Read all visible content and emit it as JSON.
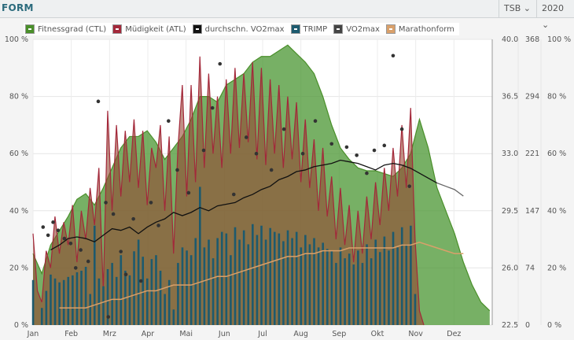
{
  "header": {
    "title": "FORM",
    "metric_select": "TSB",
    "year_select": "2020"
  },
  "legend": [
    {
      "label": "Fitnessgrad (CTL)",
      "color": "#4a8f2a"
    },
    {
      "label": "Müdigkeit (ATL)",
      "color": "#a3283a"
    },
    {
      "label": "durchschn. VO2max",
      "color": "#111111"
    },
    {
      "label": "TRIMP",
      "color": "#1d5a6e"
    },
    {
      "label": "VO2max",
      "color": "#444444"
    },
    {
      "label": "Marathonform",
      "color": "#d9a06a"
    }
  ],
  "chart_data": {
    "type": "area",
    "months": [
      "Jan",
      "Feb",
      "Mrz",
      "Apr",
      "Mai",
      "Jun",
      "Jul",
      "Aug",
      "Sep",
      "Okt",
      "Nov",
      "Dez"
    ],
    "axes": {
      "left_percent": {
        "ticks": [
          "0 %",
          "20 %",
          "40 %",
          "60 %",
          "80 %",
          "100 %"
        ],
        "range": [
          0,
          100
        ]
      },
      "vo2max": {
        "ticks": [
          "22.5",
          "26.0",
          "29.5",
          "33.0",
          "36.5",
          "40.0"
        ],
        "range": [
          22.5,
          40
        ]
      },
      "trimp": {
        "ticks": [
          "0",
          "74",
          "147",
          "221",
          "294",
          "368"
        ],
        "range": [
          0,
          368
        ]
      },
      "right_percent": {
        "ticks": [
          "0 %",
          "20 %",
          "40 %",
          "60 %",
          "80 %",
          "100 %"
        ],
        "range": [
          0,
          100
        ]
      }
    },
    "ctl_percent_weekly": [
      25,
      18,
      28,
      33,
      38,
      44,
      46,
      42,
      48,
      55,
      62,
      66,
      66,
      68,
      64,
      58,
      62,
      66,
      72,
      80,
      80,
      78,
      84,
      86,
      88,
      92,
      94,
      94,
      96,
      98,
      95,
      92,
      88,
      80,
      70,
      62,
      58,
      55,
      54,
      54,
      53,
      52,
      55,
      60,
      72,
      62,
      48,
      40,
      32,
      22,
      14,
      8,
      5
    ],
    "atl_percent_halfweekly": [
      32,
      12,
      8,
      26,
      20,
      38,
      25,
      36,
      28,
      42,
      22,
      40,
      30,
      48,
      35,
      55,
      12,
      75,
      40,
      70,
      45,
      68,
      50,
      72,
      48,
      68,
      42,
      62,
      55,
      70,
      40,
      66,
      25,
      62,
      84,
      45,
      84,
      50,
      94,
      55,
      88,
      60,
      80,
      55,
      86,
      60,
      90,
      62,
      88,
      64,
      92,
      58,
      90,
      56,
      86,
      60,
      84,
      55,
      80,
      58,
      78,
      50,
      72,
      48,
      65,
      40,
      62,
      38,
      52,
      30,
      48,
      28,
      42,
      22,
      40,
      25,
      45,
      30,
      50,
      35,
      55,
      40,
      62,
      45,
      70,
      48,
      76,
      30,
      5,
      0
    ],
    "trimp_halfweekly": [
      58,
      0,
      22,
      44,
      65,
      60,
      55,
      58,
      62,
      64,
      68,
      70,
      75,
      40,
      128,
      60,
      50,
      72,
      80,
      62,
      90,
      70,
      64,
      95,
      110,
      88,
      60,
      85,
      90,
      70,
      40,
      58,
      20,
      80,
      100,
      96,
      90,
      112,
      178,
      100,
      110,
      86,
      112,
      120,
      118,
      90,
      126,
      110,
      122,
      104,
      130,
      116,
      128,
      110,
      125,
      120,
      118,
      108,
      122,
      112,
      120,
      100,
      116,
      104,
      112,
      100,
      106,
      98,
      96,
      80,
      100,
      86,
      92,
      78,
      96,
      80,
      104,
      86,
      110,
      94,
      114,
      96,
      120,
      100,
      126,
      104,
      128,
      40,
      0,
      0
    ],
    "avg_vo2max_weekly": [
      null,
      null,
      27.1,
      27.4,
      27.8,
      27.9,
      27.8,
      27.6,
      28.0,
      28.4,
      28.3,
      28.5,
      28.1,
      28.5,
      28.8,
      29.0,
      29.4,
      29.2,
      29.4,
      29.7,
      29.5,
      29.8,
      29.9,
      30.0,
      30.3,
      30.5,
      30.8,
      31.0,
      31.4,
      31.6,
      31.9,
      32.0,
      32.2,
      32.3,
      32.4,
      32.6,
      32.5,
      32.4,
      32.2,
      32.0,
      32.3,
      32.4,
      32.3,
      32.1,
      31.8,
      31.5,
      31.2,
      31.0,
      30.8,
      30.4
    ],
    "vo2max_points": [
      [
        8,
        28.5
      ],
      [
        12,
        28.0
      ],
      [
        16,
        28.8
      ],
      [
        20,
        28.3
      ],
      [
        25,
        27.8
      ],
      [
        30,
        27.5
      ],
      [
        34,
        26.0
      ],
      [
        38,
        27.1
      ],
      [
        44,
        26.4
      ],
      [
        52,
        36.2
      ],
      [
        58,
        30.0
      ],
      [
        60,
        23.0
      ],
      [
        64,
        29.3
      ],
      [
        70,
        27.0
      ],
      [
        74,
        25.6
      ],
      [
        80,
        29.0
      ],
      [
        86,
        25.2
      ],
      [
        94,
        30.0
      ],
      [
        100,
        28.6
      ],
      [
        108,
        35.0
      ],
      [
        115,
        32.0
      ],
      [
        124,
        30.6
      ],
      [
        136,
        33.2
      ],
      [
        143,
        35.8
      ],
      [
        149,
        38.5
      ],
      [
        160,
        30.5
      ],
      [
        170,
        34.0
      ],
      [
        178,
        33.0
      ],
      [
        190,
        32.0
      ],
      [
        200,
        34.5
      ],
      [
        215,
        33.0
      ],
      [
        225,
        35.0
      ],
      [
        238,
        33.6
      ],
      [
        250,
        33.4
      ],
      [
        258,
        32.9
      ],
      [
        266,
        31.8
      ],
      [
        272,
        33.2
      ],
      [
        280,
        33.5
      ],
      [
        287,
        39.0
      ],
      [
        294,
        34.5
      ],
      [
        300,
        31.0
      ]
    ],
    "marathonform_percent_weekly": [
      null,
      null,
      null,
      6,
      6,
      6,
      6,
      7,
      8,
      9,
      9,
      10,
      11,
      12,
      12,
      13,
      14,
      14,
      14,
      15,
      16,
      17,
      17,
      18,
      19,
      20,
      21,
      22,
      23,
      24,
      24,
      25,
      25,
      26,
      26,
      26,
      27,
      27,
      27,
      27,
      27,
      27,
      28,
      28,
      29,
      28,
      27,
      26,
      25,
      25
    ]
  }
}
